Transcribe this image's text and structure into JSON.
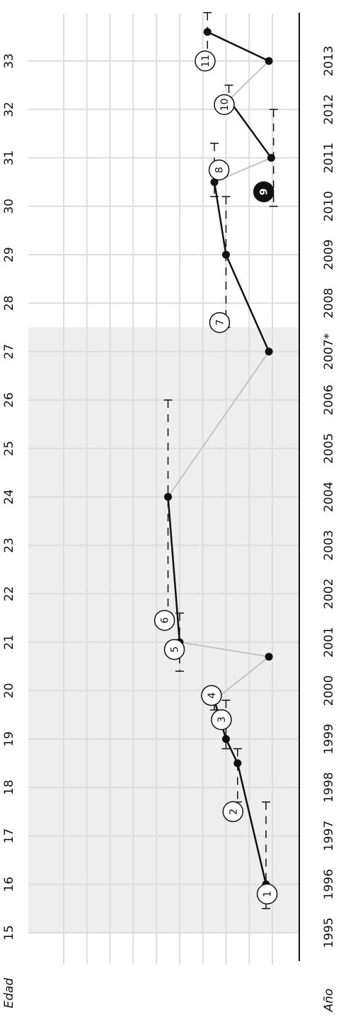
{
  "chart_data": {
    "type": "line",
    "orientation": "rotated-90",
    "axes": {
      "age": {
        "label": "Edad",
        "ticks": [
          "15",
          "16",
          "17",
          "18",
          "19",
          "20",
          "21",
          "22",
          "23",
          "24",
          "25",
          "26",
          "27",
          "28",
          "29",
          "30",
          "31",
          "32",
          "33"
        ],
        "range": [
          15,
          33
        ]
      },
      "year": {
        "label": "Año",
        "ticks": [
          "1995",
          "1996",
          "1997",
          "1998",
          "1999",
          "2000",
          "2001",
          "2002",
          "2003",
          "2004",
          "2005",
          "2006",
          "2007*",
          "2008",
          "2009",
          "2010",
          "2011",
          "2012",
          "2013"
        ]
      }
    },
    "shaded_region": {
      "age_from": 15,
      "age_to": 27.5,
      "color": "#eeeeee"
    },
    "points": [
      {
        "id": "p1",
        "age": 16.0,
        "year": 1995.55,
        "marker": "1"
      },
      {
        "id": "p2",
        "age": 18.5,
        "year": 1998.0,
        "marker": "2"
      },
      {
        "id": "p3",
        "age": 19.0,
        "year": 1999.0,
        "marker": "3"
      },
      {
        "id": "p4",
        "age": 19.8,
        "year": 2000.0,
        "marker": "4"
      },
      {
        "id": "g1",
        "age": 20.7,
        "year": 1995.3
      },
      {
        "id": "p5",
        "age": 21.0,
        "year": 2003.0,
        "marker": "5"
      },
      {
        "id": "p6",
        "age": 24.0,
        "year": 2004.0,
        "marker": "6"
      },
      {
        "id": "p7",
        "age": 27.0,
        "year": 1995.3,
        "marker": "7"
      },
      {
        "id": "p8",
        "age": 29.0,
        "year": 1999.0
      },
      {
        "id": "p9",
        "age": 30.5,
        "year": 2000.0,
        "marker": "8"
      },
      {
        "id": "p10",
        "age": 31.0,
        "year": 1995.1
      },
      {
        "id": "p11",
        "age": 32.2,
        "year": 1998.75,
        "marker": "10"
      },
      {
        "id": "p12",
        "age": 33.6,
        "year": 2000.6
      },
      {
        "id": "p13",
        "age": 33.0,
        "year": 1995.3,
        "marker": "11"
      }
    ],
    "segments": [
      {
        "from": "p1",
        "to": "p2",
        "style": "black"
      },
      {
        "from": "p2",
        "to": "p3",
        "style": "black"
      },
      {
        "from": "p3",
        "to": "p4",
        "style": "black"
      },
      {
        "from": "p4",
        "to": "g1",
        "style": "gray"
      },
      {
        "from": "g1",
        "to": "p5",
        "style": "gray"
      },
      {
        "from": "p5",
        "to": "p6",
        "style": "black"
      },
      {
        "from": "p6",
        "to": "p7",
        "style": "gray"
      },
      {
        "from": "p7",
        "to": "p8",
        "style": "black"
      },
      {
        "from": "p8",
        "to": "p9",
        "style": "black"
      },
      {
        "from": "p9",
        "to": "p10",
        "style": "gray"
      },
      {
        "from": "p10",
        "to": "p11",
        "style": "black"
      },
      {
        "from": "p11",
        "to": "p13",
        "style": "gray"
      },
      {
        "from": "p13",
        "to": "p12",
        "style": "black"
      }
    ],
    "range_bars": [
      {
        "year": 1995.55,
        "age_from": 15.5,
        "age_to": 17.7
      },
      {
        "year": 1998.0,
        "age_from": 17.7,
        "age_to": 18.8
      },
      {
        "year": 1999.0,
        "age_from": 18.8,
        "age_to": 19.8
      },
      {
        "year": 2000.0,
        "age_from": 19.6,
        "age_to": 20.0
      },
      {
        "year": 2003.0,
        "age_from": 20.4,
        "age_to": 21.6
      },
      {
        "year": 2004.0,
        "age_from": 21.6,
        "age_to": 26.0
      },
      {
        "year": 1999.0,
        "age_from": 27.5,
        "age_to": 30.2
      },
      {
        "year": 2000.0,
        "age_from": 30.2,
        "age_to": 31.3
      },
      {
        "year": 1994.9,
        "age_from": 30.0,
        "age_to": 32.0
      },
      {
        "year": 1998.75,
        "age_from": 32.0,
        "age_to": 32.5
      },
      {
        "year": 2000.6,
        "age_from": 33.0,
        "age_to": 34.0
      }
    ],
    "markers": [
      {
        "label": "1",
        "age": 15.8,
        "year": 1995.45,
        "filled": false
      },
      {
        "label": "2",
        "age": 17.5,
        "year": 1998.4,
        "filled": false
      },
      {
        "label": "3",
        "age": 19.4,
        "year": 1999.4,
        "filled": false
      },
      {
        "label": "4",
        "age": 19.9,
        "year": 2000.25,
        "filled": false
      },
      {
        "label": "5",
        "age": 20.85,
        "year": 2003.45,
        "filled": false
      },
      {
        "label": "6",
        "age": 21.45,
        "year": 2004.3,
        "filled": false
      },
      {
        "label": "7",
        "age": 27.6,
        "year": 1999.55,
        "filled": false
      },
      {
        "label": "8",
        "age": 30.75,
        "year": 1999.6,
        "filled": false
      },
      {
        "label": "9",
        "age": 30.3,
        "year": 1995.75,
        "filled": true
      },
      {
        "label": "10",
        "age": 32.1,
        "year": 1999.15,
        "filled": false
      },
      {
        "label": "11",
        "age": 33.0,
        "year": 2000.8,
        "filled": false
      }
    ],
    "colors": {
      "black_line": "#111111",
      "gray_line": "#c4c4c4",
      "grid": "#dddddd",
      "shade": "#eeeeee",
      "ink": "#111111"
    }
  }
}
